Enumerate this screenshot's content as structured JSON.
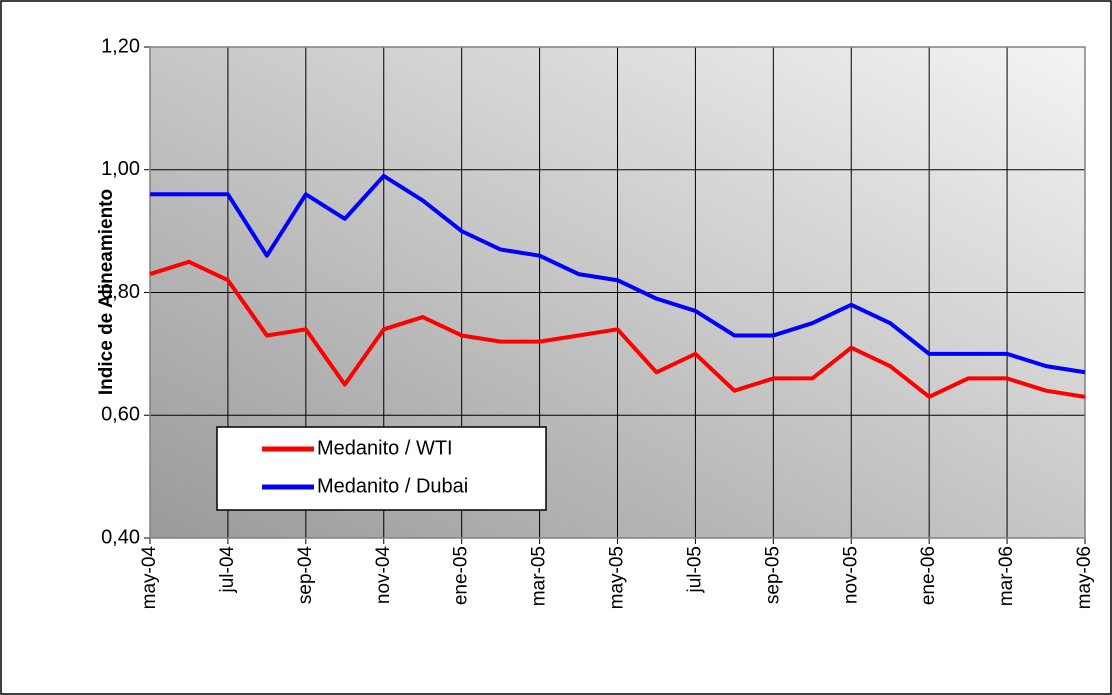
{
  "chart_data": {
    "type": "line",
    "y_label": "Indice de Alineamiento",
    "categories": [
      "may-04",
      null,
      "jul-04",
      null,
      "sep-04",
      null,
      "nov-04",
      null,
      "ene-05",
      null,
      "mar-05",
      null,
      "may-05",
      null,
      "jul-05",
      null,
      "sep-05",
      null,
      "nov-05",
      null,
      "ene-06",
      null,
      "mar-06",
      null,
      "may-06"
    ],
    "series": [
      {
        "name": "Medanito / WTI",
        "color": "#ff0000",
        "values": [
          0.83,
          0.85,
          0.82,
          0.73,
          0.74,
          0.65,
          0.74,
          0.76,
          0.73,
          0.72,
          0.72,
          0.73,
          0.74,
          0.67,
          0.7,
          0.64,
          0.66,
          0.66,
          0.71,
          0.68,
          0.63,
          0.66,
          0.66,
          0.64,
          0.63
        ]
      },
      {
        "name": "Medanito / Dubai",
        "color": "#0000ff",
        "values": [
          0.96,
          0.96,
          0.96,
          0.86,
          0.96,
          0.92,
          0.99,
          0.95,
          0.9,
          0.87,
          0.86,
          0.83,
          0.82,
          0.79,
          0.77,
          0.73,
          0.73,
          0.75,
          0.78,
          0.75,
          0.7,
          0.7,
          0.7,
          0.68,
          0.67
        ]
      }
    ],
    "ylim": [
      0.4,
      1.2
    ],
    "yticks": [
      {
        "value": 0.4,
        "label": "0,40"
      },
      {
        "value": 0.6,
        "label": "0,60"
      },
      {
        "value": 0.8,
        "label": "0,80"
      },
      {
        "value": 1.0,
        "label": "1,00"
      },
      {
        "value": 1.2,
        "label": "1,20"
      }
    ],
    "grid": true,
    "legend": "lower left"
  }
}
